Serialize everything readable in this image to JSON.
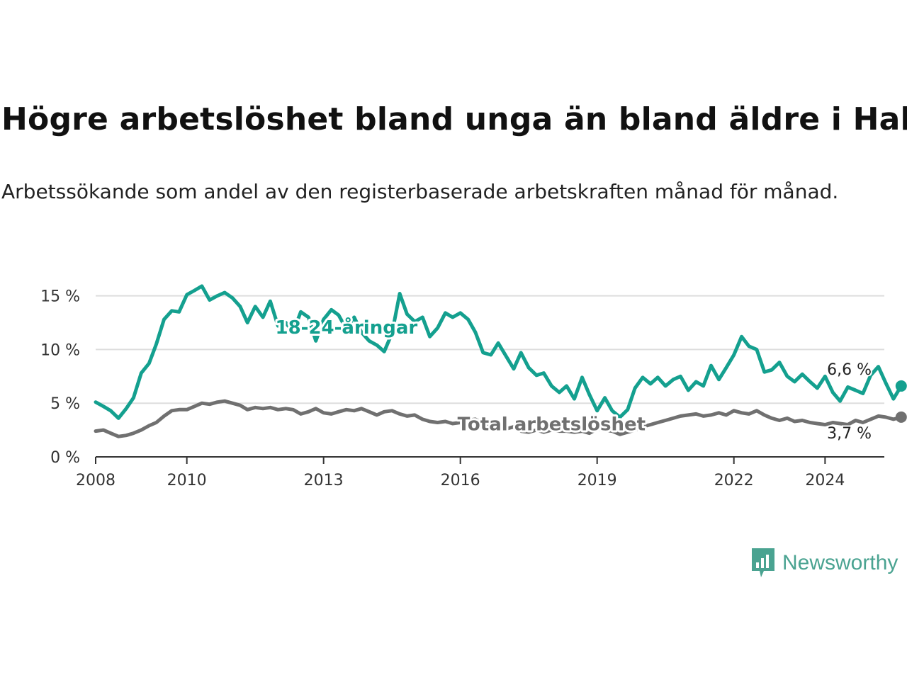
{
  "title": "Högre arbetslöshet bland unga än bland äldre i Habo",
  "subtitle": "Arbetssökande som andel av den registerbaserade arbetskraften månad för månad.",
  "brand": "Newsworthy",
  "colors": {
    "youth": "#14a08f",
    "total": "#707070",
    "grid": "#dddddd",
    "axis": "#333333",
    "brand": "#4aa391"
  },
  "chart_data": {
    "type": "line",
    "title": "Högre arbetslöshet bland unga än bland äldre i Habo",
    "xlabel": "",
    "ylabel": "",
    "xlim": [
      2008,
      2025.3
    ],
    "ylim": [
      0,
      15.5
    ],
    "x_ticks": [
      2008,
      2010,
      2013,
      2016,
      2019,
      2022,
      2024
    ],
    "x_tick_labels": [
      "2008",
      "2010",
      "2013",
      "2016",
      "2019",
      "2022",
      "2024"
    ],
    "y_ticks": [
      0,
      5,
      10,
      15
    ],
    "y_tick_labels": [
      "0 %",
      "5 %",
      "10 %",
      "15 %"
    ],
    "series": [
      {
        "name": "18-24-åringar",
        "label_at": [
          2013.5,
          12.0
        ],
        "end_label": "6,6 %",
        "points": [
          [
            2008.0,
            5.1
          ],
          [
            2008.17,
            4.7
          ],
          [
            2008.33,
            4.3
          ],
          [
            2008.5,
            3.6
          ],
          [
            2008.67,
            4.5
          ],
          [
            2008.83,
            5.5
          ],
          [
            2009.0,
            7.8
          ],
          [
            2009.17,
            8.7
          ],
          [
            2009.33,
            10.5
          ],
          [
            2009.5,
            12.8
          ],
          [
            2009.67,
            13.6
          ],
          [
            2009.83,
            13.5
          ],
          [
            2010.0,
            15.1
          ],
          [
            2010.17,
            15.5
          ],
          [
            2010.33,
            15.9
          ],
          [
            2010.5,
            14.6
          ],
          [
            2010.67,
            15.0
          ],
          [
            2010.83,
            15.3
          ],
          [
            2011.0,
            14.8
          ],
          [
            2011.17,
            14.0
          ],
          [
            2011.33,
            12.5
          ],
          [
            2011.5,
            14.0
          ],
          [
            2011.67,
            13.0
          ],
          [
            2011.83,
            14.5
          ],
          [
            2012.0,
            12.2
          ],
          [
            2012.17,
            12.5
          ],
          [
            2012.33,
            11.6
          ],
          [
            2012.5,
            13.5
          ],
          [
            2012.67,
            13.0
          ],
          [
            2012.83,
            10.8
          ],
          [
            2013.0,
            12.8
          ],
          [
            2013.17,
            13.7
          ],
          [
            2013.33,
            13.2
          ],
          [
            2013.5,
            11.9
          ],
          [
            2013.67,
            13.0
          ],
          [
            2013.83,
            11.6
          ],
          [
            2014.0,
            10.8
          ],
          [
            2014.17,
            10.4
          ],
          [
            2014.33,
            9.8
          ],
          [
            2014.5,
            11.5
          ],
          [
            2014.67,
            15.2
          ],
          [
            2014.83,
            13.3
          ],
          [
            2015.0,
            12.6
          ],
          [
            2015.17,
            13.0
          ],
          [
            2015.33,
            11.2
          ],
          [
            2015.5,
            12.0
          ],
          [
            2015.67,
            13.4
          ],
          [
            2015.83,
            13.0
          ],
          [
            2016.0,
            13.4
          ],
          [
            2016.17,
            12.8
          ],
          [
            2016.33,
            11.6
          ],
          [
            2016.5,
            9.7
          ],
          [
            2016.67,
            9.5
          ],
          [
            2016.83,
            10.6
          ],
          [
            2017.0,
            9.4
          ],
          [
            2017.17,
            8.2
          ],
          [
            2017.33,
            9.7
          ],
          [
            2017.5,
            8.3
          ],
          [
            2017.67,
            7.6
          ],
          [
            2017.83,
            7.8
          ],
          [
            2018.0,
            6.6
          ],
          [
            2018.17,
            6.0
          ],
          [
            2018.33,
            6.6
          ],
          [
            2018.5,
            5.4
          ],
          [
            2018.67,
            7.4
          ],
          [
            2018.83,
            5.8
          ],
          [
            2019.0,
            4.3
          ],
          [
            2019.17,
            5.5
          ],
          [
            2019.33,
            4.3
          ],
          [
            2019.5,
            3.7
          ],
          [
            2019.67,
            4.4
          ],
          [
            2019.83,
            6.4
          ],
          [
            2020.0,
            7.4
          ],
          [
            2020.17,
            6.8
          ],
          [
            2020.33,
            7.4
          ],
          [
            2020.5,
            6.6
          ],
          [
            2020.67,
            7.2
          ],
          [
            2020.83,
            7.5
          ],
          [
            2021.0,
            6.2
          ],
          [
            2021.17,
            7.0
          ],
          [
            2021.33,
            6.6
          ],
          [
            2021.5,
            8.5
          ],
          [
            2021.67,
            7.2
          ],
          [
            2021.83,
            8.3
          ],
          [
            2022.0,
            9.5
          ],
          [
            2022.17,
            11.2
          ],
          [
            2022.33,
            10.3
          ],
          [
            2022.5,
            10.0
          ],
          [
            2022.67,
            7.9
          ],
          [
            2022.83,
            8.1
          ],
          [
            2023.0,
            8.8
          ],
          [
            2023.17,
            7.5
          ],
          [
            2023.33,
            7.0
          ],
          [
            2023.5,
            7.7
          ],
          [
            2023.67,
            7.0
          ],
          [
            2023.83,
            6.4
          ],
          [
            2024.0,
            7.5
          ],
          [
            2024.17,
            6.0
          ],
          [
            2024.33,
            5.2
          ],
          [
            2024.5,
            6.5
          ],
          [
            2024.67,
            6.2
          ],
          [
            2024.83,
            5.9
          ],
          [
            2025.0,
            7.6
          ],
          [
            2025.17,
            8.4
          ],
          [
            2025.33,
            6.9
          ],
          [
            2025.5,
            5.4
          ],
          [
            2025.67,
            6.6
          ]
        ]
      },
      {
        "name": "Total arbetslöshet",
        "label_at": [
          2018.0,
          3.0
        ],
        "end_label": "3,7 %",
        "points": [
          [
            2008.0,
            2.4
          ],
          [
            2008.17,
            2.5
          ],
          [
            2008.33,
            2.2
          ],
          [
            2008.5,
            1.9
          ],
          [
            2008.67,
            2.0
          ],
          [
            2008.83,
            2.2
          ],
          [
            2009.0,
            2.5
          ],
          [
            2009.17,
            2.9
          ],
          [
            2009.33,
            3.2
          ],
          [
            2009.5,
            3.8
          ],
          [
            2009.67,
            4.3
          ],
          [
            2009.83,
            4.4
          ],
          [
            2010.0,
            4.4
          ],
          [
            2010.17,
            4.7
          ],
          [
            2010.33,
            5.0
          ],
          [
            2010.5,
            4.9
          ],
          [
            2010.67,
            5.1
          ],
          [
            2010.83,
            5.2
          ],
          [
            2011.0,
            5.0
          ],
          [
            2011.17,
            4.8
          ],
          [
            2011.33,
            4.4
          ],
          [
            2011.5,
            4.6
          ],
          [
            2011.67,
            4.5
          ],
          [
            2011.83,
            4.6
          ],
          [
            2012.0,
            4.4
          ],
          [
            2012.17,
            4.5
          ],
          [
            2012.33,
            4.4
          ],
          [
            2012.5,
            4.0
          ],
          [
            2012.67,
            4.2
          ],
          [
            2012.83,
            4.5
          ],
          [
            2013.0,
            4.1
          ],
          [
            2013.17,
            4.0
          ],
          [
            2013.33,
            4.2
          ],
          [
            2013.5,
            4.4
          ],
          [
            2013.67,
            4.3
          ],
          [
            2013.83,
            4.5
          ],
          [
            2014.0,
            4.2
          ],
          [
            2014.17,
            3.9
          ],
          [
            2014.33,
            4.2
          ],
          [
            2014.5,
            4.3
          ],
          [
            2014.67,
            4.0
          ],
          [
            2014.83,
            3.8
          ],
          [
            2015.0,
            3.9
          ],
          [
            2015.17,
            3.5
          ],
          [
            2015.33,
            3.3
          ],
          [
            2015.5,
            3.2
          ],
          [
            2015.67,
            3.3
          ],
          [
            2015.83,
            3.1
          ],
          [
            2016.0,
            3.2
          ],
          [
            2016.17,
            3.4
          ],
          [
            2016.33,
            3.5
          ],
          [
            2016.5,
            3.1
          ],
          [
            2016.67,
            2.7
          ],
          [
            2016.83,
            2.9
          ],
          [
            2017.0,
            2.6
          ],
          [
            2017.17,
            2.8
          ],
          [
            2017.33,
            2.4
          ],
          [
            2017.5,
            2.3
          ],
          [
            2017.67,
            2.5
          ],
          [
            2017.83,
            2.3
          ],
          [
            2018.0,
            2.5
          ],
          [
            2018.17,
            2.4
          ],
          [
            2018.33,
            2.4
          ],
          [
            2018.5,
            2.3
          ],
          [
            2018.67,
            2.4
          ],
          [
            2018.83,
            2.2
          ],
          [
            2019.0,
            2.6
          ],
          [
            2019.17,
            2.5
          ],
          [
            2019.33,
            2.4
          ],
          [
            2019.5,
            2.1
          ],
          [
            2019.67,
            2.3
          ],
          [
            2019.83,
            2.5
          ],
          [
            2020.0,
            2.8
          ],
          [
            2020.17,
            3.0
          ],
          [
            2020.33,
            3.2
          ],
          [
            2020.5,
            3.4
          ],
          [
            2020.67,
            3.6
          ],
          [
            2020.83,
            3.8
          ],
          [
            2021.0,
            3.9
          ],
          [
            2021.17,
            4.0
          ],
          [
            2021.33,
            3.8
          ],
          [
            2021.5,
            3.9
          ],
          [
            2021.67,
            4.1
          ],
          [
            2021.83,
            3.9
          ],
          [
            2022.0,
            4.3
          ],
          [
            2022.17,
            4.1
          ],
          [
            2022.33,
            4.0
          ],
          [
            2022.5,
            4.3
          ],
          [
            2022.67,
            3.9
          ],
          [
            2022.83,
            3.6
          ],
          [
            2023.0,
            3.4
          ],
          [
            2023.17,
            3.6
          ],
          [
            2023.33,
            3.3
          ],
          [
            2023.5,
            3.4
          ],
          [
            2023.67,
            3.2
          ],
          [
            2023.83,
            3.1
          ],
          [
            2024.0,
            3.0
          ],
          [
            2024.17,
            3.2
          ],
          [
            2024.33,
            3.1
          ],
          [
            2024.5,
            3.0
          ],
          [
            2024.67,
            3.4
          ],
          [
            2024.83,
            3.2
          ],
          [
            2025.0,
            3.5
          ],
          [
            2025.17,
            3.8
          ],
          [
            2025.33,
            3.7
          ],
          [
            2025.5,
            3.5
          ],
          [
            2025.67,
            3.7
          ]
        ]
      }
    ]
  }
}
